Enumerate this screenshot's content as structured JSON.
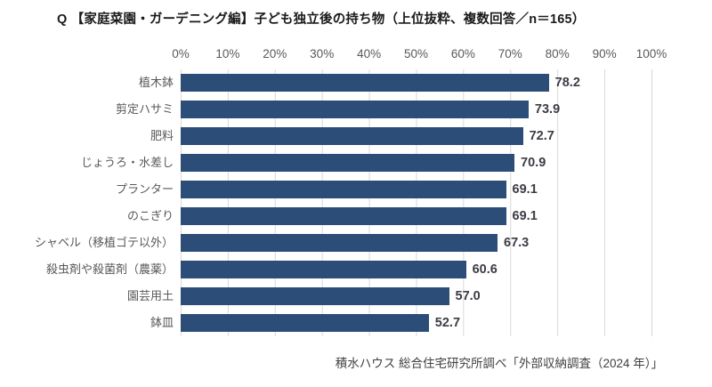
{
  "title": "Q 【家庭菜園・ガーデニング編】子ども独立後の持ち物（上位抜粋、複数回答／n＝165）",
  "footer": "積水ハウス 総合住宅研究所調べ「外部収納調査（2024 年）」",
  "chart_data": {
    "type": "bar",
    "orientation": "horizontal",
    "title": "Q 【家庭菜園・ガーデニング編】子ども独立後の持ち物（上位抜粋、複数回答／n＝165）",
    "categories": [
      "植木鉢",
      "剪定ハサミ",
      "肥料",
      "じょうろ・水差し",
      "プランター",
      "のこぎり",
      "シャベル（移植ゴテ以外）",
      "殺虫剤や殺菌剤（農薬）",
      "園芸用土",
      "鉢皿"
    ],
    "values": [
      78.2,
      73.9,
      72.7,
      70.9,
      69.1,
      69.1,
      67.3,
      60.6,
      57.0,
      52.7
    ],
    "value_labels": [
      "78.2",
      "73.9",
      "72.7",
      "70.9",
      "69.1",
      "69.1",
      "67.3",
      "60.6",
      "57.0",
      "52.7"
    ],
    "xlim": [
      0,
      100
    ],
    "x_ticks": [
      "0%",
      "10%",
      "20%",
      "30%",
      "40%",
      "50%",
      "60%",
      "70%",
      "80%",
      "90%",
      "100%"
    ],
    "grid": true,
    "axis_position": "top",
    "bar_color": "#2B4D77",
    "gridline_color": "#d9d9d9",
    "category_label_color": "#595959",
    "value_label_color": "#3c3c45",
    "source_note": "積水ハウス 総合住宅研究所調べ「外部収納調査（2024 年）」"
  }
}
